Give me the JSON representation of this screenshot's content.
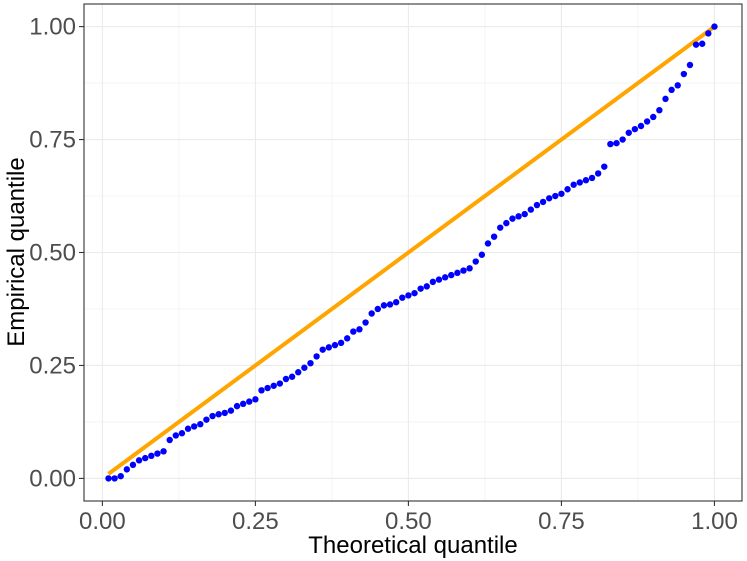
{
  "chart_data": {
    "type": "scatter",
    "title": "",
    "xlabel": "Theoretical quantile",
    "ylabel": "Empirical quantile",
    "xlim": [
      -0.03,
      1.045
    ],
    "ylim": [
      -0.05,
      1.05
    ],
    "x_ticks": [
      0.0,
      0.25,
      0.5,
      0.75,
      1.0
    ],
    "y_ticks": [
      0.0,
      0.25,
      0.5,
      0.75,
      1.0
    ],
    "x_tick_labels": [
      "0.00",
      "0.25",
      "0.50",
      "0.75",
      "1.00"
    ],
    "y_tick_labels": [
      "0.00",
      "0.25",
      "0.50",
      "0.75",
      "1.00"
    ],
    "grid": true,
    "legend": "none",
    "reference_line": {
      "x": [
        0.01,
        1.0
      ],
      "y": [
        0.01,
        1.0
      ],
      "color": "#FFA500"
    },
    "series": [
      {
        "color": "#0000FF",
        "x": [
          0.01,
          0.02,
          0.03,
          0.04,
          0.05,
          0.06,
          0.07,
          0.08,
          0.09,
          0.1,
          0.11,
          0.12,
          0.13,
          0.14,
          0.15,
          0.16,
          0.17,
          0.18,
          0.19,
          0.2,
          0.21,
          0.22,
          0.23,
          0.24,
          0.25,
          0.26,
          0.27,
          0.28,
          0.29,
          0.3,
          0.31,
          0.32,
          0.33,
          0.34,
          0.35,
          0.36,
          0.37,
          0.38,
          0.39,
          0.4,
          0.41,
          0.42,
          0.43,
          0.44,
          0.45,
          0.46,
          0.47,
          0.48,
          0.49,
          0.5,
          0.51,
          0.52,
          0.53,
          0.54,
          0.55,
          0.56,
          0.57,
          0.58,
          0.59,
          0.6,
          0.61,
          0.62,
          0.63,
          0.64,
          0.65,
          0.66,
          0.67,
          0.68,
          0.69,
          0.7,
          0.71,
          0.72,
          0.73,
          0.74,
          0.75,
          0.76,
          0.77,
          0.78,
          0.79,
          0.8,
          0.81,
          0.82,
          0.83,
          0.84,
          0.85,
          0.86,
          0.87,
          0.88,
          0.89,
          0.9,
          0.91,
          0.92,
          0.93,
          0.94,
          0.95,
          0.96,
          0.97,
          0.98,
          0.99,
          1.0
        ],
        "y": [
          0.0,
          0.0,
          0.005,
          0.02,
          0.03,
          0.04,
          0.045,
          0.05,
          0.055,
          0.06,
          0.085,
          0.095,
          0.1,
          0.11,
          0.115,
          0.12,
          0.13,
          0.138,
          0.142,
          0.145,
          0.15,
          0.16,
          0.165,
          0.17,
          0.175,
          0.195,
          0.2,
          0.205,
          0.21,
          0.22,
          0.225,
          0.235,
          0.245,
          0.255,
          0.27,
          0.285,
          0.29,
          0.295,
          0.3,
          0.31,
          0.325,
          0.33,
          0.345,
          0.365,
          0.375,
          0.383,
          0.385,
          0.39,
          0.4,
          0.405,
          0.41,
          0.42,
          0.425,
          0.435,
          0.44,
          0.445,
          0.45,
          0.455,
          0.46,
          0.465,
          0.48,
          0.495,
          0.52,
          0.535,
          0.555,
          0.565,
          0.575,
          0.58,
          0.585,
          0.595,
          0.605,
          0.612,
          0.62,
          0.625,
          0.63,
          0.64,
          0.65,
          0.655,
          0.66,
          0.665,
          0.675,
          0.69,
          0.74,
          0.742,
          0.75,
          0.765,
          0.773,
          0.78,
          0.79,
          0.8,
          0.815,
          0.84,
          0.86,
          0.87,
          0.895,
          0.915,
          0.96,
          0.962,
          0.985,
          1.0
        ]
      }
    ]
  }
}
